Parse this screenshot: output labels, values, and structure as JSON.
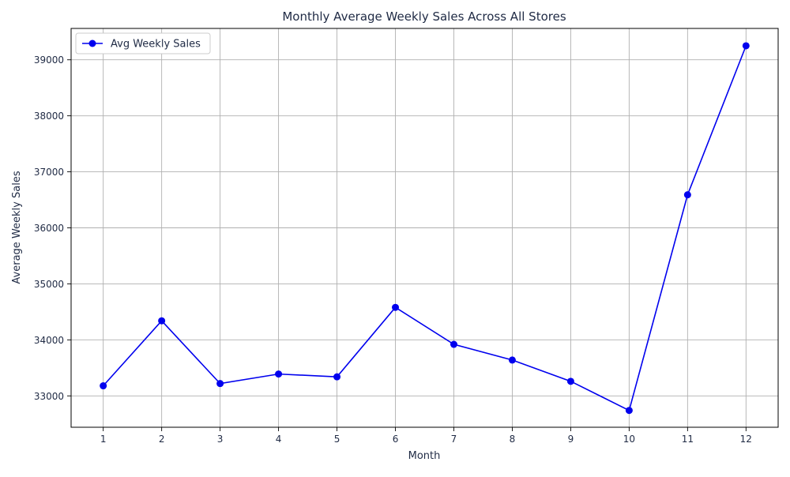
{
  "chart_data": {
    "type": "line",
    "title": "Monthly Average Weekly Sales Across All Stores",
    "xlabel": "Month",
    "ylabel": "Average Weekly Sales",
    "x": [
      1,
      2,
      3,
      4,
      5,
      6,
      7,
      8,
      9,
      10,
      11,
      12
    ],
    "x_tick_labels": [
      "1",
      "2",
      "3",
      "4",
      "5",
      "6",
      "7",
      "8",
      "9",
      "10",
      "11",
      "12"
    ],
    "y_ticks": [
      33000,
      34000,
      35000,
      36000,
      37000,
      38000,
      39000
    ],
    "y_tick_labels": [
      "33000",
      "34000",
      "35000",
      "36000",
      "37000",
      "38000",
      "39000"
    ],
    "xlim": [
      0.45,
      12.55
    ],
    "ylim": [
      32440,
      39560
    ],
    "grid": true,
    "legend_position": "top-left",
    "series": [
      {
        "name": "Avg Weekly Sales",
        "color": "#0000ee",
        "marker": "circle",
        "values": [
          33180,
          34340,
          33220,
          33390,
          33340,
          34580,
          33920,
          33640,
          33260,
          32740,
          36590,
          39250
        ]
      }
    ]
  },
  "colors": {
    "grid": "#b0b0b0",
    "axis": "#000000",
    "text": "#1f2a44",
    "legend_border": "#cccccc"
  }
}
